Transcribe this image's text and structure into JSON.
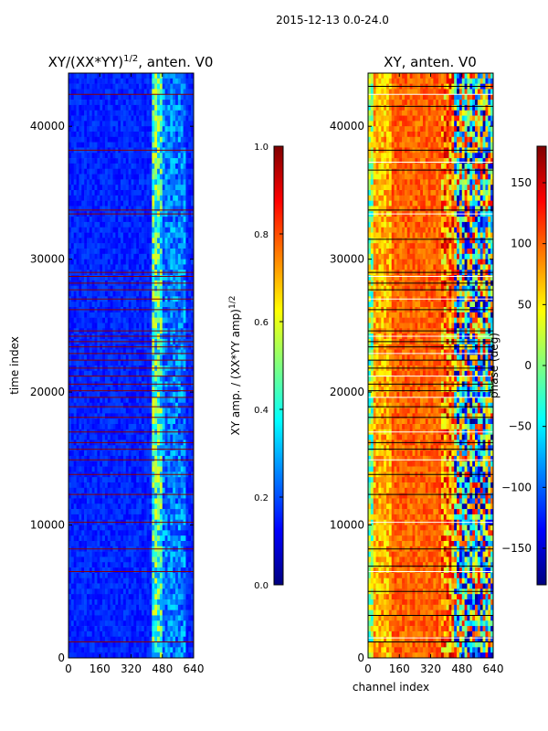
{
  "figure": {
    "suptitle": "2015-12-13 0.0-24.0",
    "shared_xlabel": "channel index"
  },
  "colors": {
    "jet": [
      "#00007f",
      "#0000ff",
      "#007fff",
      "#00ffff",
      "#7fff7f",
      "#ffff00",
      "#ff7f00",
      "#ff0000",
      "#7f0000"
    ],
    "flag_line_left": "#8b0000",
    "flag_line_right_dark": "#000000",
    "flag_line_right_light": "#ffffff"
  },
  "chart_data": [
    {
      "type": "heatmap",
      "title": "XY/(XX*YY)",
      "title_superscript": "1/2",
      "title_suffix": ", anten. V0",
      "ylabel": "time index",
      "xlim": [
        0,
        640
      ],
      "ylim": [
        0,
        44000
      ],
      "xticks": [
        0,
        160,
        320,
        480,
        640
      ],
      "yticks": [
        0,
        10000,
        20000,
        30000,
        40000
      ],
      "colorbar": {
        "label": "XY amp. / (XX*YY amp)",
        "label_superscript": "1/2",
        "range": [
          0.0,
          1.0
        ],
        "ticks": [
          "0.0",
          "0.2",
          "0.4",
          "0.6",
          "0.8",
          "1.0"
        ],
        "tick_values": [
          0.0,
          0.2,
          0.4,
          0.6,
          0.8,
          1.0
        ]
      },
      "flagged_time_indices": [
        1200,
        6500,
        8200,
        10200,
        12300,
        13800,
        14900,
        15700,
        16200,
        17000,
        18100,
        18900,
        19600,
        20100,
        20600,
        21200,
        21800,
        22400,
        22900,
        23400,
        23800,
        24200,
        24600,
        26200,
        27000,
        27700,
        28200,
        28700,
        29000,
        33400,
        33700,
        38200,
        42400
      ]
    },
    {
      "type": "heatmap",
      "title": "XY, anten. V0",
      "xlabel": "channel index",
      "xlim": [
        0,
        640
      ],
      "ylim": [
        0,
        44000
      ],
      "xticks": [
        0,
        160,
        320,
        480,
        640
      ],
      "yticks": [
        0,
        10000,
        20000,
        30000,
        40000
      ],
      "colorbar": {
        "label": "phase (deg)",
        "range": [
          -180,
          180
        ],
        "ticks": [
          "150",
          "100",
          "50",
          "0",
          "−50",
          "−100",
          "−150"
        ],
        "tick_values": [
          150,
          100,
          50,
          0,
          -50,
          -100,
          -150
        ]
      },
      "flagged_time_indices": [
        1200,
        1500,
        3200,
        5000,
        6500,
        6900,
        8200,
        10200,
        12300,
        13800,
        14900,
        15700,
        16200,
        17000,
        18100,
        18900,
        19600,
        20100,
        20600,
        21200,
        21800,
        22400,
        22900,
        23400,
        23800,
        24200,
        24600,
        26200,
        27000,
        27700,
        28200,
        28700,
        29000,
        31500,
        33400,
        33700,
        36700,
        37300,
        38200,
        41500,
        42400,
        43000
      ]
    }
  ]
}
